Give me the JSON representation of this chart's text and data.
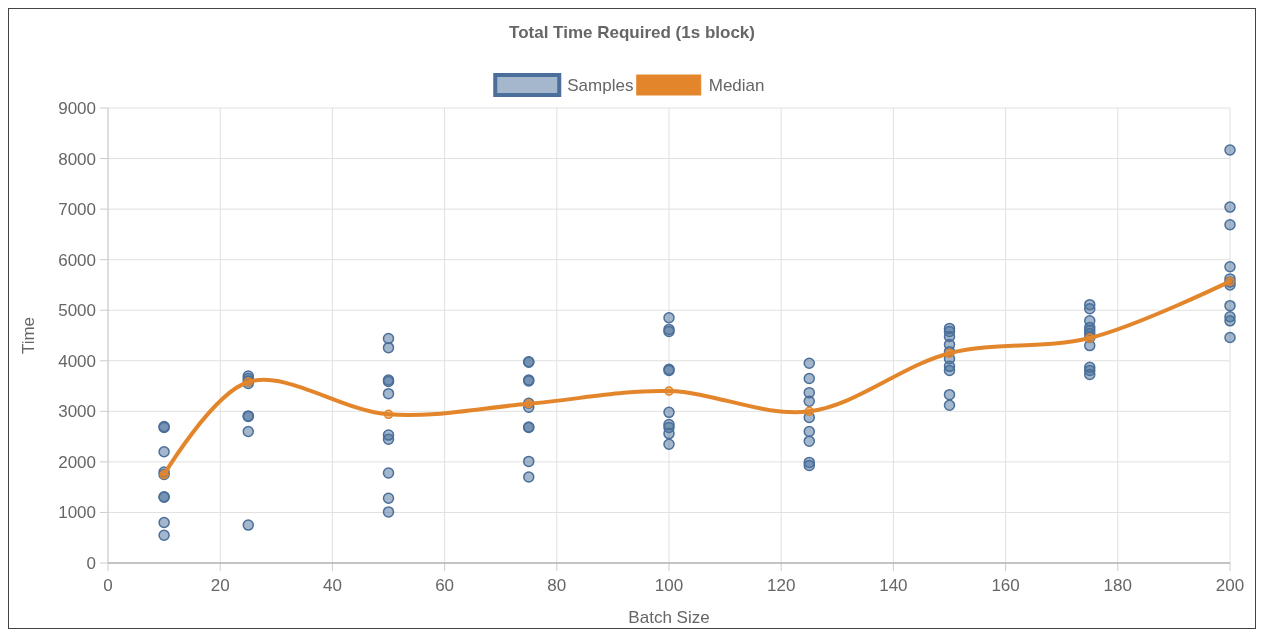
{
  "chart_data": {
    "type": "scatter",
    "title": "Total Time Required (1s block)",
    "xlabel": "Batch Size",
    "ylabel": "Time",
    "xlim": [
      0,
      200
    ],
    "xticks": [
      0,
      20,
      40,
      60,
      80,
      100,
      120,
      140,
      160,
      180,
      200
    ],
    "ylim": [
      0,
      9000
    ],
    "yticks": [
      0,
      1000,
      2000,
      3000,
      4000,
      5000,
      6000,
      7000,
      8000,
      9000
    ],
    "grid": true,
    "legend": "top",
    "marker": "circle",
    "series": [
      {
        "name": "Samples",
        "color": "#4a6f9a",
        "x": [
          10,
          10,
          10,
          10,
          10,
          10,
          10,
          10,
          10,
          25,
          25,
          25,
          25,
          25,
          25,
          25,
          25,
          50,
          50,
          50,
          50,
          50,
          50,
          50,
          50,
          50,
          50,
          75,
          75,
          75,
          75,
          75,
          75,
          75,
          75,
          75,
          75,
          100,
          100,
          100,
          100,
          100,
          100,
          100,
          100,
          100,
          100,
          125,
          125,
          125,
          125,
          125,
          125,
          125,
          125,
          125,
          150,
          150,
          150,
          150,
          150,
          150,
          150,
          150,
          150,
          150,
          175,
          175,
          175,
          175,
          175,
          175,
          175,
          175,
          175,
          175,
          175,
          200,
          200,
          200,
          200,
          200,
          200,
          200,
          200,
          200,
          200,
          200
        ],
        "values": [
          2700,
          2680,
          2200,
          1800,
          1750,
          1310,
          1300,
          800,
          550,
          3700,
          3650,
          3600,
          3550,
          2910,
          2900,
          2600,
          750,
          4440,
          4260,
          3620,
          3590,
          3350,
          2530,
          2450,
          1780,
          1280,
          1010,
          3980,
          3970,
          3620,
          3600,
          3160,
          3080,
          2690,
          2680,
          2010,
          1700,
          4850,
          4620,
          4580,
          3830,
          3810,
          2980,
          2740,
          2680,
          2560,
          2350,
          3950,
          3650,
          3370,
          3200,
          2880,
          2600,
          2410,
          1990,
          1930,
          4640,
          4580,
          4480,
          4320,
          4180,
          4040,
          3890,
          3810,
          3330,
          3120,
          5110,
          5030,
          4790,
          4660,
          4600,
          4540,
          4460,
          4300,
          3870,
          3810,
          3730,
          8170,
          7040,
          6690,
          5860,
          5620,
          5560,
          5500,
          5090,
          4870,
          4790,
          4460
        ]
      },
      {
        "name": "Median",
        "type": "line",
        "color": "#e3852b",
        "x": [
          10,
          25,
          50,
          75,
          100,
          125,
          150,
          175,
          200
        ],
        "values": [
          1750,
          3580,
          2940,
          3150,
          3400,
          3000,
          4150,
          4450,
          5570
        ]
      }
    ]
  }
}
